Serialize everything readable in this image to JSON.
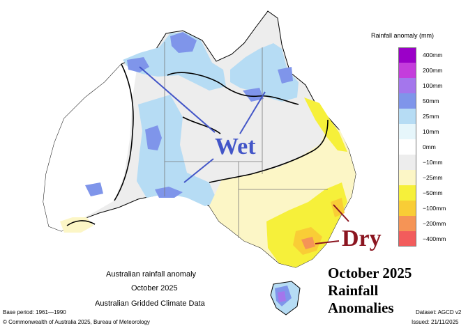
{
  "legend": {
    "title": "Rainfall anomaly (mm)",
    "entries": [
      {
        "label": "400mm",
        "color": "#9b00c8"
      },
      {
        "label": "200mm",
        "color": "#c43ddc"
      },
      {
        "label": "100mm",
        "color": "#a476ec"
      },
      {
        "label": "50mm",
        "color": "#7f95ea"
      },
      {
        "label": "25mm",
        "color": "#b6dcf4"
      },
      {
        "label": "10mm",
        "color": "#e6f6fb"
      },
      {
        "label": "0mm",
        "color": "#ffffff"
      },
      {
        "label": "−10mm",
        "color": "#ededed"
      },
      {
        "label": "−25mm",
        "color": "#fcf6c6"
      },
      {
        "label": "−50mm",
        "color": "#f6f03a"
      },
      {
        "label": "−100mm",
        "color": "#f9cd36"
      },
      {
        "label": "−200mm",
        "color": "#f59456"
      },
      {
        "label": "−400mm",
        "color": "#f25c5c"
      }
    ]
  },
  "annotations": {
    "wet_label": "Wet",
    "wet_color": "#4356c8",
    "dry_label": "Dry",
    "dry_color": "#8b1520",
    "title_line1": "October 2025",
    "title_line2": "Rainfall",
    "title_line3": "Anomalies"
  },
  "caption": {
    "line1": "Australian rainfall anomaly",
    "line2": "October 2025",
    "line3": "Australian Gridded Climate Data"
  },
  "footer": {
    "base_period": "Base period: 1961—1990",
    "copyright": "© Commonwealth of Australia 2025, Bureau of Meteorology",
    "dataset": "Dataset: AGCD v2",
    "issued": "Issued: 21/11/2025"
  },
  "map_colors": {
    "land": "#ededed",
    "white_zone": "#ffffff",
    "light_blue": "#b6dcf4",
    "blue": "#7f95ea",
    "pale_yellow": "#fcf6c6",
    "yellow": "#f6f03a",
    "orange": "#f9cd36",
    "dark_orange": "#f59456"
  }
}
